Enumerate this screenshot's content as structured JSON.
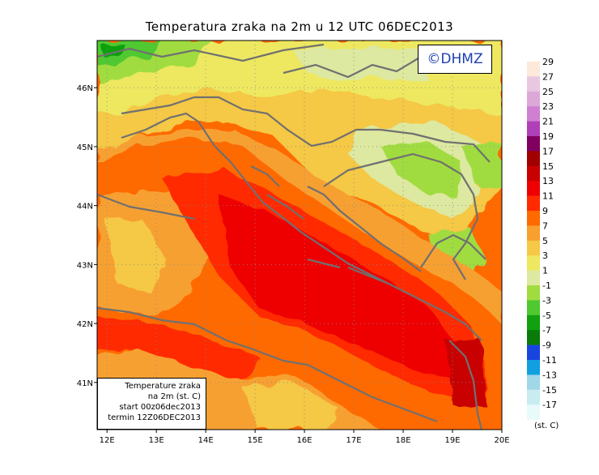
{
  "title": "Temperatura zraka na 2m u 12 UTC 06DEC2013",
  "logo": "©DHMZ",
  "info_box": {
    "line1": "Temperature zraka",
    "line2": "na 2m (st. C)",
    "line3": "start 00z06dec2013",
    "line4": "termin 12Z06DEC2013"
  },
  "axes": {
    "lon_labels": [
      "12E",
      "13E",
      "14E",
      "15E",
      "16E",
      "17E",
      "18E",
      "19E",
      "20E"
    ],
    "lat_labels": [
      "46N",
      "45N",
      "44N",
      "43N",
      "42N",
      "41N"
    ]
  },
  "colorbar": {
    "unit": "(st. C)",
    "labels": [
      "29",
      "27",
      "25",
      "23",
      "21",
      "19",
      "17",
      "15",
      "13",
      "11",
      "9",
      "7",
      "5",
      "3",
      "1",
      "-1",
      "-3",
      "-5",
      "-7",
      "-9",
      "-11",
      "-13",
      "-15",
      "-17"
    ],
    "colors": [
      "#fde9d9",
      "#e8c8e0",
      "#dca8d8",
      "#d080d0",
      "#b040b8",
      "#800060",
      "#a00000",
      "#c80000",
      "#ee0000",
      "#ff2a00",
      "#ff6a00",
      "#f7a030",
      "#f5c845",
      "#ede860",
      "#dde8a0",
      "#a0dc40",
      "#50c830",
      "#10a010",
      "#0a7a0a",
      "#1844e0",
      "#10a0e0",
      "#a0d8e8",
      "#c8ecf0",
      "#e8fafa"
    ]
  },
  "map": {
    "lon_range": [
      11.8,
      20.0
    ],
    "lat_range": [
      40.2,
      46.8
    ]
  }
}
